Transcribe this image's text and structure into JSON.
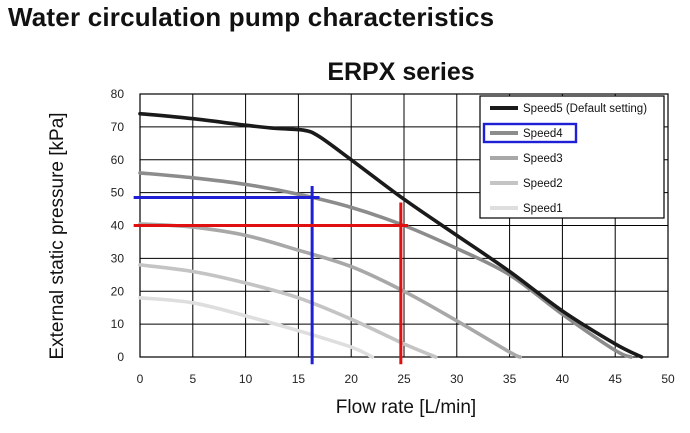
{
  "page": {
    "title": "Water circulation pump characteristics"
  },
  "chart_data": {
    "type": "line",
    "title": "ERPX series",
    "xlabel": "Flow rate [L/min]",
    "ylabel": "External static pressure [kPa]",
    "xlim": [
      0,
      50
    ],
    "ylim": [
      0,
      80
    ],
    "x_ticks": [
      0,
      5,
      10,
      15,
      20,
      25,
      30,
      35,
      40,
      45,
      50
    ],
    "y_ticks": [
      0,
      10,
      20,
      30,
      40,
      50,
      60,
      70,
      80
    ],
    "grid": true,
    "legend_position": "top-right",
    "series": [
      {
        "name": "Speed5 (Default setting)",
        "color": "#1a1a1a",
        "points": [
          [
            0,
            74
          ],
          [
            5,
            72.5
          ],
          [
            10,
            70.5
          ],
          [
            13,
            69.5
          ],
          [
            15.5,
            69
          ],
          [
            17,
            67
          ],
          [
            20,
            60
          ],
          [
            25,
            48
          ],
          [
            30,
            37
          ],
          [
            35,
            26
          ],
          [
            40,
            14
          ],
          [
            45,
            4
          ],
          [
            47.5,
            0
          ]
        ]
      },
      {
        "name": "Speed4",
        "color": "#8c8c8c",
        "highlighted": true,
        "points": [
          [
            0,
            56
          ],
          [
            5,
            54.5
          ],
          [
            10,
            52.5
          ],
          [
            15,
            49.5
          ],
          [
            20,
            45.5
          ],
          [
            25,
            40
          ],
          [
            30,
            33
          ],
          [
            35,
            25
          ],
          [
            40,
            13
          ],
          [
            45,
            2
          ],
          [
            46.5,
            0
          ]
        ]
      },
      {
        "name": "Speed3",
        "color": "#a8a8a8",
        "points": [
          [
            0,
            40.5
          ],
          [
            5,
            39.5
          ],
          [
            10,
            37
          ],
          [
            15,
            32.5
          ],
          [
            20,
            27.5
          ],
          [
            25,
            20
          ],
          [
            30,
            11
          ],
          [
            35,
            1.5
          ],
          [
            36,
            0
          ]
        ]
      },
      {
        "name": "Speed2",
        "color": "#c4c4c4",
        "points": [
          [
            0,
            28
          ],
          [
            5,
            26
          ],
          [
            10,
            22.5
          ],
          [
            15,
            18
          ],
          [
            20,
            11.5
          ],
          [
            25,
            4
          ],
          [
            28,
            0
          ]
        ]
      },
      {
        "name": "Speed1",
        "color": "#dedede",
        "points": [
          [
            0,
            18
          ],
          [
            5,
            16.5
          ],
          [
            10,
            12.5
          ],
          [
            15,
            8
          ],
          [
            20,
            3
          ],
          [
            22,
            0
          ]
        ]
      }
    ],
    "annotations": [
      {
        "type": "hline",
        "y": 48.5,
        "x_from": -0.6,
        "x_to": 17,
        "color": "#1f1fd6"
      },
      {
        "type": "vline",
        "x": 16.3,
        "y_from": -2.2,
        "y_to": 52,
        "color": "#1f1fd6"
      },
      {
        "type": "hline",
        "y": 40,
        "x_from": -0.6,
        "x_to": 25.4,
        "color": "#e01010"
      },
      {
        "type": "vline",
        "x": 24.7,
        "y_from": -2.2,
        "y_to": 47,
        "color": "#e01010"
      }
    ],
    "legend_highlight": {
      "series": "Speed4",
      "color": "#1f1fd6"
    }
  }
}
